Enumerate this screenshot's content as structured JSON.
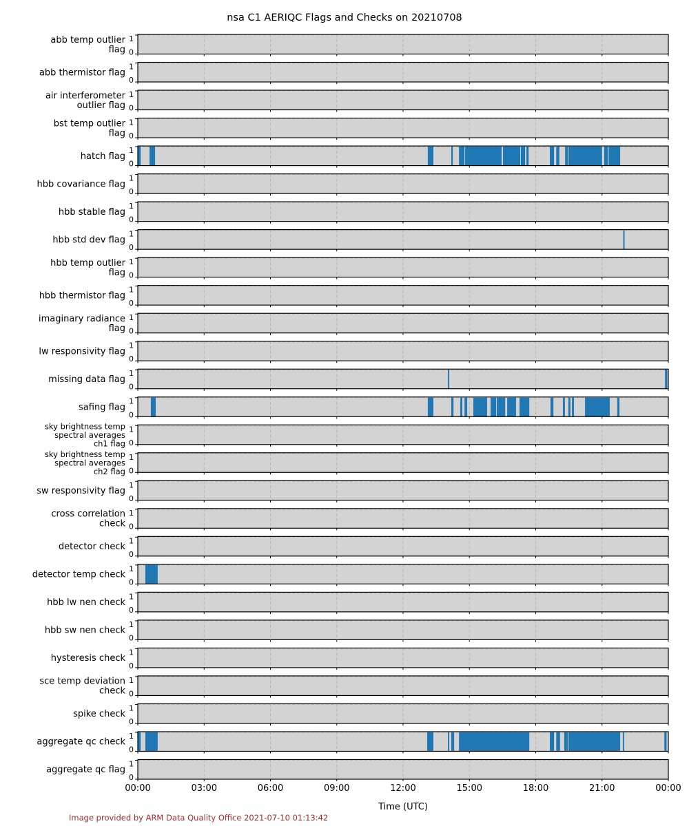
{
  "chart_data": {
    "type": "bar",
    "title": "nsa C1 AERIQC Flags and Checks on 20210708",
    "xlabel": "Time (UTC)",
    "ylabel": "",
    "xlim_hours": [
      0,
      24
    ],
    "ylim": [
      0,
      1
    ],
    "grid": true,
    "x_tick_labels": [
      "00:00",
      "03:00",
      "06:00",
      "09:00",
      "12:00",
      "15:00",
      "18:00",
      "21:00",
      "00:00"
    ],
    "y_tick_labels": [
      "0",
      "1"
    ],
    "colors": {
      "bar": "#1f77b4",
      "panel_bg": "#d3d3d3",
      "credit": "#a52a2a"
    },
    "series": [
      {
        "name": "abb temp outlier flag",
        "label_lines": [
          "abb temp outlier",
          "flag"
        ],
        "intervals_hours": []
      },
      {
        "name": "abb thermistor flag",
        "label_lines": [
          "abb thermistor flag"
        ],
        "intervals_hours": []
      },
      {
        "name": "air interferometer outlier flag",
        "label_lines": [
          "air interferometer",
          "outlier flag"
        ],
        "intervals_hours": []
      },
      {
        "name": "bst temp outlier flag",
        "label_lines": [
          "bst temp outlier",
          "flag"
        ],
        "intervals_hours": []
      },
      {
        "name": "hatch flag",
        "label_lines": [
          "hatch flag"
        ],
        "intervals_hours": [
          [
            0.0,
            0.13
          ],
          [
            0.53,
            0.78
          ],
          [
            13.12,
            13.37
          ],
          [
            14.18,
            14.25
          ],
          [
            14.53,
            14.78
          ],
          [
            14.81,
            16.46
          ],
          [
            16.52,
            17.3
          ],
          [
            17.33,
            17.52
          ],
          [
            17.58,
            17.68
          ],
          [
            18.64,
            18.83
          ],
          [
            18.93,
            19.07
          ],
          [
            19.33,
            19.45
          ],
          [
            19.48,
            21.0
          ],
          [
            21.1,
            21.27
          ],
          [
            21.3,
            21.82
          ]
        ]
      },
      {
        "name": "hbb covariance flag",
        "label_lines": [
          "hbb covariance flag"
        ],
        "intervals_hours": []
      },
      {
        "name": "hbb stable flag",
        "label_lines": [
          "hbb stable flag"
        ],
        "intervals_hours": []
      },
      {
        "name": "hbb std dev flag",
        "label_lines": [
          "hbb std dev flag"
        ],
        "intervals_hours": [
          [
            21.96,
            22.02
          ]
        ]
      },
      {
        "name": "hbb temp outlier flag",
        "label_lines": [
          "hbb temp outlier",
          "flag"
        ],
        "intervals_hours": []
      },
      {
        "name": "hbb thermistor flag",
        "label_lines": [
          "hbb thermistor flag"
        ],
        "intervals_hours": []
      },
      {
        "name": "imaginary radiance flag",
        "label_lines": [
          "imaginary radiance",
          "flag"
        ],
        "intervals_hours": []
      },
      {
        "name": "lw responsivity flag",
        "label_lines": [
          "lw responsivity flag"
        ],
        "intervals_hours": []
      },
      {
        "name": "missing data flag",
        "label_lines": [
          "missing data flag"
        ],
        "intervals_hours": [
          [
            14.03,
            14.09
          ],
          [
            23.85,
            23.95
          ]
        ]
      },
      {
        "name": "safing flag",
        "label_lines": [
          "safing flag"
        ],
        "intervals_hours": [
          [
            0.59,
            0.81
          ],
          [
            13.12,
            13.37
          ],
          [
            14.18,
            14.28
          ],
          [
            14.59,
            14.68
          ],
          [
            14.78,
            14.9
          ],
          [
            15.18,
            15.8
          ],
          [
            15.96,
            16.21
          ],
          [
            16.24,
            16.62
          ],
          [
            16.71,
            17.11
          ],
          [
            17.27,
            17.71
          ],
          [
            18.67,
            18.8
          ],
          [
            19.23,
            19.32
          ],
          [
            19.48,
            19.57
          ],
          [
            19.64,
            19.73
          ],
          [
            20.23,
            21.35
          ],
          [
            21.69,
            21.79
          ]
        ]
      },
      {
        "name": "sky brightness temp spectral averages ch1 flag",
        "label_lines": [
          "sky brightness temp",
          "spectral averages",
          "ch1 flag"
        ],
        "intervals_hours": []
      },
      {
        "name": "sky brightness temp spectral averages ch2 flag",
        "label_lines": [
          "sky brightness temp",
          "spectral averages",
          "ch2 flag"
        ],
        "intervals_hours": []
      },
      {
        "name": "sw responsivity flag",
        "label_lines": [
          "sw responsivity flag"
        ],
        "intervals_hours": []
      },
      {
        "name": "cross correlation check",
        "label_lines": [
          "cross correlation",
          "check"
        ],
        "intervals_hours": []
      },
      {
        "name": "detector check",
        "label_lines": [
          "detector check"
        ],
        "intervals_hours": []
      },
      {
        "name": "detector temp check",
        "label_lines": [
          "detector temp check"
        ],
        "intervals_hours": [
          [
            0.34,
            0.9
          ]
        ]
      },
      {
        "name": "hbb lw nen check",
        "label_lines": [
          "hbb lw nen check"
        ],
        "intervals_hours": []
      },
      {
        "name": "hbb sw nen check",
        "label_lines": [
          "hbb sw nen check"
        ],
        "intervals_hours": []
      },
      {
        "name": "hysteresis check",
        "label_lines": [
          "hysteresis check"
        ],
        "intervals_hours": []
      },
      {
        "name": "sce temp deviation check",
        "label_lines": [
          "sce temp deviation",
          "check"
        ],
        "intervals_hours": []
      },
      {
        "name": "spike check",
        "label_lines": [
          "spike check"
        ],
        "intervals_hours": []
      },
      {
        "name": "aggregate qc check",
        "label_lines": [
          "aggregate qc check"
        ],
        "intervals_hours": [
          [
            0.0,
            0.13
          ],
          [
            0.34,
            0.9
          ],
          [
            13.09,
            13.37
          ],
          [
            14.03,
            14.09
          ],
          [
            14.18,
            14.31
          ],
          [
            14.53,
            17.71
          ],
          [
            18.64,
            18.83
          ],
          [
            18.93,
            19.1
          ],
          [
            19.29,
            19.45
          ],
          [
            19.48,
            21.82
          ],
          [
            21.94,
            22.0
          ],
          [
            23.82,
            23.92
          ]
        ]
      },
      {
        "name": "aggregate qc flag",
        "label_lines": [
          "aggregate qc flag"
        ],
        "intervals_hours": []
      }
    ]
  },
  "footer": {
    "credit": "Image provided by ARM Data Quality Office 2021-07-10 01:13:42"
  }
}
